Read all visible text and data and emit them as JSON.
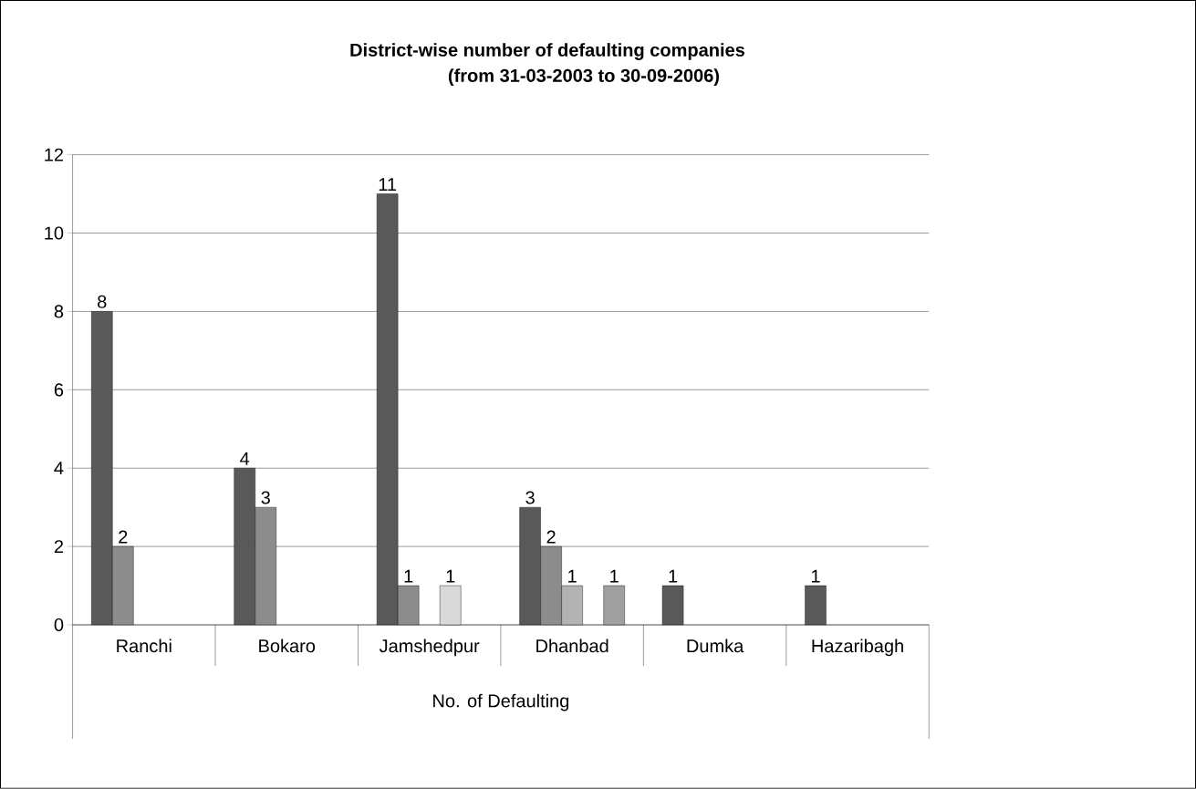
{
  "chart_data": {
    "type": "bar",
    "title": "District-wise number of defaulting companies",
    "subtitle": "(from 31-03-2003 to 30-09-2006)",
    "xlabel": "No. of Defaulting",
    "categories": [
      "Ranchi",
      "Bokaro",
      "Jamshedpur",
      "Dhanbad",
      "Dumka",
      "Hazaribagh"
    ],
    "series": [
      {
        "color": "#595959",
        "values": [
          8,
          4,
          11,
          3,
          1,
          1
        ]
      },
      {
        "color": "#8c8c8c",
        "values": [
          2,
          3,
          1,
          2,
          null,
          null
        ]
      },
      {
        "color": "#b3b3b3",
        "values": [
          null,
          null,
          null,
          1,
          null,
          null
        ]
      },
      {
        "color": "#d9d9d9",
        "values": [
          null,
          null,
          1,
          null,
          null,
          null
        ]
      },
      {
        "color": "#a0a0a0",
        "values": [
          null,
          null,
          null,
          1,
          null,
          null
        ]
      }
    ],
    "ylim": [
      0,
      12
    ],
    "yticks": [
      0,
      2,
      4,
      6,
      8,
      10,
      12
    ],
    "grid": "y",
    "data_labels": true
  }
}
